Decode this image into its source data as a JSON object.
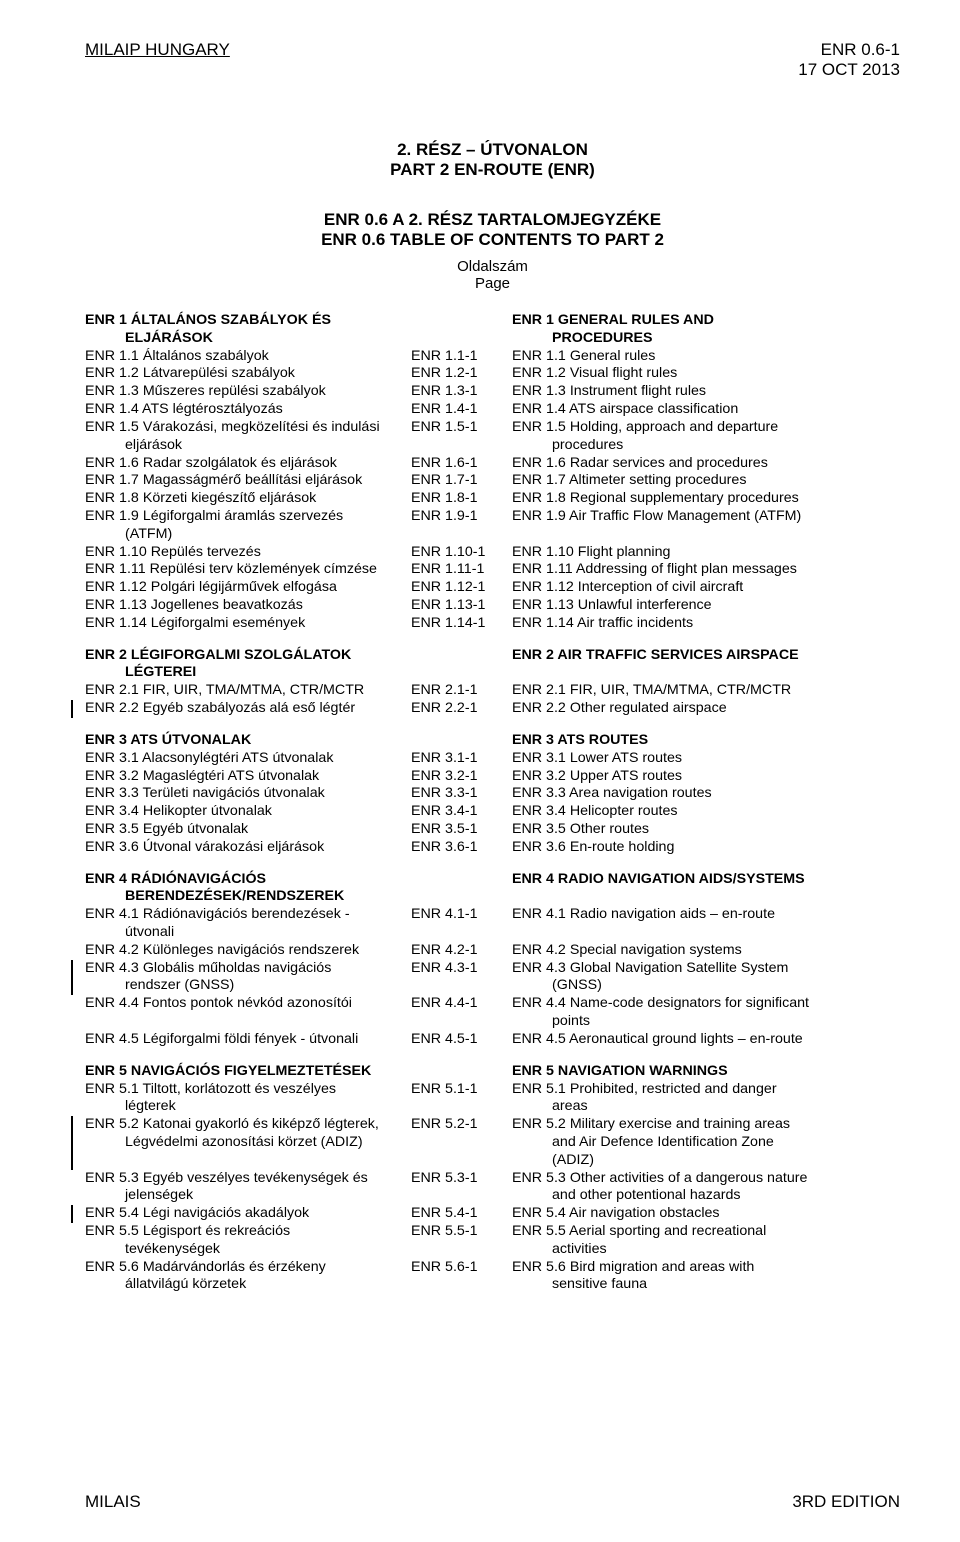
{
  "header": {
    "left": "MILAIP HUNGARY",
    "right_line1": "ENR 0.6-1",
    "right_line2": "17 OCT 2013"
  },
  "title": {
    "line1": "2. RÉSZ – ÚTVONALON",
    "line2": "PART 2 EN-ROUTE (ENR)"
  },
  "subtitle": {
    "line1": "ENR 0.6 A 2. RÉSZ TARTALOMJEGYZÉKE",
    "line2": "ENR 0.6 TABLE OF CONTENTS TO PART 2"
  },
  "page_label": {
    "line1": "Oldalszám",
    "line2": "Page"
  },
  "sections": [
    {
      "head": {
        "hu": "ENR 1 ÁLTALÁNOS SZABÁLYOK ÉS",
        "hu2": "ELJÁRÁSOK",
        "en": "ENR 1 GENERAL RULES AND",
        "en2": "PROCEDURES"
      },
      "rows": [
        {
          "hu": "ENR 1.1 Általános szabályok",
          "mid": "ENR 1.1-1",
          "en": "ENR 1.1 General rules"
        },
        {
          "hu": "ENR 1.2 Látvarepülési szabályok",
          "mid": "ENR 1.2-1",
          "en": "ENR 1.2 Visual flight rules"
        },
        {
          "hu": "ENR 1.3 Műszeres repülési szabályok",
          "mid": "ENR 1.3-1",
          "en": "ENR 1.3 Instrument flight rules"
        },
        {
          "hu": "ENR 1.4 ATS légtérosztályozás",
          "mid": "ENR 1.4-1",
          "en": "ENR 1.4 ATS airspace classification"
        },
        {
          "hu": "ENR 1.5 Várakozási, megközelítési és indulási",
          "hu2": "eljárások",
          "mid": "ENR 1.5-1",
          "en": "ENR 1.5 Holding, approach and departure",
          "en2": "procedures"
        },
        {
          "hu": "ENR 1.6 Radar szolgálatok és eljárások",
          "mid": "ENR 1.6-1",
          "en": "ENR 1.6 Radar services and procedures"
        },
        {
          "hu": "ENR 1.7 Magasságmérő beállítási eljárások",
          "mid": "ENR 1.7-1",
          "en": "ENR 1.7 Altimeter setting procedures"
        },
        {
          "hu": "ENR 1.8 Körzeti kiegészítő eljárások",
          "mid": "ENR 1.8-1",
          "en": "ENR 1.8 Regional supplementary procedures"
        },
        {
          "hu": "ENR 1.9 Légiforgalmi áramlás szervezés",
          "hu2": "(ATFM)",
          "mid": "ENR 1.9-1",
          "en": "ENR 1.9 Air Traffic Flow Management (ATFM)"
        },
        {
          "hu": "ENR 1.10 Repülés tervezés",
          "mid": "ENR 1.10-1",
          "en": "ENR 1.10 Flight planning"
        },
        {
          "hu": "ENR 1.11 Repülési terv közlemények címzése",
          "mid": "ENR 1.11-1",
          "en": "ENR 1.11 Addressing of flight plan messages"
        },
        {
          "hu": "ENR 1.12 Polgári légijárművek elfogása",
          "mid": "ENR 1.12-1",
          "en": "ENR 1.12 Interception of civil aircraft"
        },
        {
          "hu": "ENR 1.13 Jogellenes beavatkozás",
          "mid": "ENR 1.13-1",
          "en": "ENR 1.13 Unlawful interference"
        },
        {
          "hu": "ENR 1.14 Légiforgalmi események",
          "mid": "ENR 1.14-1",
          "en": "ENR 1.14 Air traffic incidents"
        }
      ]
    },
    {
      "head": {
        "hu": "ENR 2 LÉGIFORGALMI SZOLGÁLATOK",
        "hu2": "LÉGTEREI",
        "en": "ENR 2 AIR TRAFFIC SERVICES AIRSPACE"
      },
      "rows": [
        {
          "hu": "ENR 2.1 FIR, UIR, TMA/MTMA, CTR/MCTR",
          "mid": "ENR 2.1-1",
          "en": "ENR 2.1 FIR, UIR, TMA/MTMA, CTR/MCTR"
        },
        {
          "hu": "ENR 2.2 Egyéb szabályozás alá eső légtér",
          "mid": "ENR 2.2-1",
          "en": "ENR 2.2 Other regulated airspace",
          "bar": true
        }
      ]
    },
    {
      "head": {
        "hu": "ENR 3 ATS ÚTVONALAK",
        "en": "ENR 3 ATS ROUTES"
      },
      "rows": [
        {
          "hu": "ENR 3.1 Alacsonylégtéri ATS útvonalak",
          "mid": "ENR 3.1-1",
          "en": "ENR 3.1 Lower ATS routes"
        },
        {
          "hu": "ENR 3.2 Magaslégtéri ATS útvonalak",
          "mid": "ENR 3.2-1",
          "en": "ENR 3.2 Upper ATS routes"
        },
        {
          "hu": "ENR 3.3 Területi navigációs útvonalak",
          "mid": "ENR 3.3-1",
          "en": "ENR 3.3 Area navigation routes"
        },
        {
          "hu": "ENR 3.4 Helikopter útvonalak",
          "mid": "ENR 3.4-1",
          "en": "ENR 3.4 Helicopter routes"
        },
        {
          "hu": "ENR 3.5 Egyéb útvonalak",
          "mid": "ENR 3.5-1",
          "en": "ENR 3.5 Other routes"
        },
        {
          "hu": "ENR 3.6 Útvonal várakozási eljárások",
          "mid": "ENR 3.6-1",
          "en": "ENR 3.6 En-route holding"
        }
      ]
    },
    {
      "head": {
        "hu": "ENR 4 RÁDIÓNAVIGÁCIÓS",
        "hu2": "BERENDEZÉSEK/RENDSZEREK",
        "en": "ENR 4 RADIO NAVIGATION AIDS/SYSTEMS"
      },
      "rows": [
        {
          "hu": "ENR 4.1 Rádiónavigációs berendezések -",
          "hu2": "útvonali",
          "mid": "ENR 4.1-1",
          "en": "ENR 4.1 Radio navigation aids – en-route"
        },
        {
          "hu": "ENR 4.2 Különleges navigációs rendszerek",
          "mid": "ENR 4.2-1",
          "en": "ENR 4.2 Special navigation systems"
        },
        {
          "hu": "ENR 4.3 Globális műholdas navigációs",
          "hu2": "rendszer (GNSS)",
          "mid": "ENR 4.3-1",
          "en": "ENR 4.3 Global Navigation Satellite System",
          "en2": "(GNSS)",
          "bar": true
        },
        {
          "hu": "ENR 4.4 Fontos pontok névkód azonosítói",
          "mid": "ENR 4.4-1",
          "en": "ENR 4.4 Name-code designators for significant",
          "en2": "points"
        },
        {
          "hu": "ENR 4.5 Légiforgalmi földi fények - útvonali",
          "mid": "ENR 4.5-1",
          "en": "ENR 4.5 Aeronautical ground lights – en-route"
        }
      ]
    },
    {
      "head": {
        "hu": "ENR 5 NAVIGÁCIÓS FIGYELMEZTETÉSEK",
        "en": "ENR 5 NAVIGATION WARNINGS"
      },
      "rows": [
        {
          "hu": "ENR 5.1 Tiltott, korlátozott és veszélyes",
          "hu2": "légterek",
          "mid": "ENR 5.1-1",
          "en": "ENR 5.1 Prohibited, restricted and danger",
          "en2": "areas"
        },
        {
          "hu": "ENR 5.2 Katonai gyakorló és kiképző légterek,",
          "hu2": "Légvédelmi azonosítási körzet (ADIZ)",
          "mid": "ENR 5.2-1",
          "en": "ENR 5.2 Military exercise and training areas",
          "en2": "and Air Defence Identification Zone",
          "en3": "(ADIZ)",
          "bar": true
        },
        {
          "hu": "ENR 5.3 Egyéb veszélyes tevékenységek és",
          "hu2": "jelenségek",
          "mid": "ENR 5.3-1",
          "en": "ENR 5.3 Other activities of a dangerous nature",
          "en2": "and other potentional hazards"
        },
        {
          "hu": "ENR 5.4 Légi navigációs akadályok",
          "mid": "ENR 5.4-1",
          "en": "ENR 5.4 Air navigation obstacles",
          "bar": true
        },
        {
          "hu": "ENR 5.5 Légisport és rekreációs",
          "hu2": "tevékenységek",
          "mid": "ENR 5.5-1",
          "en": "ENR 5.5 Aerial sporting and recreational",
          "en2": "activities"
        },
        {
          "hu": "ENR 5.6 Madárvándorlás és érzékeny",
          "hu2": "állatvilágú körzetek",
          "mid": "ENR 5.6-1",
          "en": "ENR 5.6 Bird migration and areas with",
          "en2": "sensitive fauna"
        }
      ]
    }
  ],
  "footer": {
    "left": "MILAIS",
    "right": "3RD EDITION"
  }
}
